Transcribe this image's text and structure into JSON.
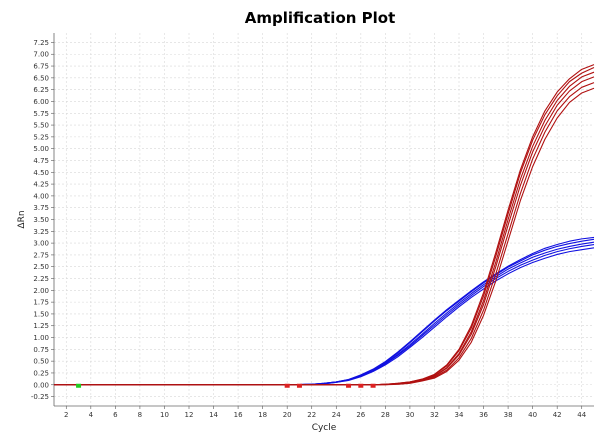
{
  "chart_data": {
    "type": "line",
    "title": "Amplification Plot",
    "xlabel": "Cycle",
    "ylabel": "ΔRn",
    "xlim": [
      1,
      45
    ],
    "ylim": [
      -0.45,
      7.45
    ],
    "x_ticks": [
      "2",
      "4",
      "6",
      "8",
      "10",
      "12",
      "14",
      "16",
      "18",
      "20",
      "22",
      "24",
      "26",
      "28",
      "30",
      "32",
      "34",
      "36",
      "38",
      "40",
      "42",
      "44"
    ],
    "y_ticks": [
      "-0.25",
      "0.00",
      "0.25",
      "0.50",
      "0.75",
      "1.00",
      "1.25",
      "1.50",
      "1.75",
      "2.00",
      "2.25",
      "2.50",
      "2.75",
      "3.00",
      "3.25",
      "3.50",
      "3.75",
      "4.00",
      "4.25",
      "4.50",
      "4.75",
      "5.00",
      "5.25",
      "5.50",
      "5.75",
      "6.00",
      "6.25",
      "6.50",
      "6.75",
      "7.00",
      "7.25"
    ],
    "grid": true,
    "series_groups": [
      {
        "color": "#1010e0",
        "curves": [
          {
            "x": [
              1,
              3,
              6,
              10,
              14,
              18,
              20,
              22,
              23,
              24,
              25,
              26,
              27,
              28,
              29,
              30,
              31,
              32,
              33,
              34,
              35,
              36,
              37,
              38,
              39,
              40,
              41,
              42,
              43,
              44,
              45
            ],
            "y": [
              0,
              0,
              0,
              0,
              0,
              0,
              0,
              0.01,
              0.03,
              0.06,
              0.11,
              0.2,
              0.32,
              0.48,
              0.67,
              0.89,
              1.12,
              1.35,
              1.57,
              1.77,
              1.97,
              2.16,
              2.33,
              2.49,
              2.62,
              2.75,
              2.85,
              2.93,
              2.99,
              3.04,
              3.08
            ]
          },
          {
            "x": [
              1,
              3,
              6,
              10,
              14,
              18,
              20,
              22,
              23,
              24,
              25,
              26,
              27,
              28,
              29,
              30,
              31,
              32,
              33,
              34,
              35,
              36,
              37,
              38,
              39,
              40,
              41,
              42,
              43,
              44,
              45
            ],
            "y": [
              0,
              0,
              0,
              0,
              0,
              0,
              0,
              0.01,
              0.03,
              0.06,
              0.1,
              0.19,
              0.3,
              0.46,
              0.64,
              0.85,
              1.07,
              1.3,
              1.52,
              1.73,
              1.93,
              2.12,
              2.29,
              2.45,
              2.58,
              2.7,
              2.79,
              2.87,
              2.93,
              2.98,
              3.02
            ]
          },
          {
            "x": [
              1,
              3,
              6,
              10,
              14,
              18,
              20,
              22,
              23,
              24,
              25,
              26,
              27,
              28,
              29,
              30,
              31,
              32,
              33,
              34,
              35,
              36,
              37,
              38,
              39,
              40,
              41,
              42,
              43,
              44,
              45
            ],
            "y": [
              0,
              0,
              0,
              0,
              0,
              0,
              0,
              0.01,
              0.02,
              0.05,
              0.1,
              0.18,
              0.29,
              0.44,
              0.62,
              0.82,
              1.04,
              1.26,
              1.48,
              1.69,
              1.89,
              2.08,
              2.25,
              2.4,
              2.53,
              2.64,
              2.74,
              2.82,
              2.88,
              2.93,
              2.97
            ]
          },
          {
            "x": [
              1,
              3,
              6,
              10,
              14,
              18,
              20,
              22,
              23,
              24,
              25,
              26,
              27,
              28,
              29,
              30,
              31,
              32,
              33,
              34,
              35,
              36,
              37,
              38,
              39,
              40,
              41,
              42,
              43,
              44,
              45
            ],
            "y": [
              0,
              0,
              0,
              0,
              0,
              0,
              0,
              0.01,
              0.02,
              0.05,
              0.09,
              0.17,
              0.28,
              0.42,
              0.59,
              0.79,
              1.0,
              1.22,
              1.44,
              1.65,
              1.85,
              2.03,
              2.2,
              2.35,
              2.48,
              2.59,
              2.68,
              2.76,
              2.82,
              2.86,
              2.9
            ]
          },
          {
            "x": [
              1,
              3,
              6,
              10,
              14,
              18,
              20,
              22,
              23,
              24,
              25,
              26,
              27,
              28,
              29,
              30,
              31,
              32,
              33,
              34,
              35,
              36,
              37,
              38,
              39,
              40,
              41,
              42,
              43,
              44,
              45
            ],
            "y": [
              0,
              0,
              0,
              0,
              0,
              0,
              0,
              0.01,
              0.03,
              0.06,
              0.11,
              0.21,
              0.33,
              0.49,
              0.69,
              0.91,
              1.14,
              1.37,
              1.59,
              1.79,
              1.99,
              2.18,
              2.35,
              2.51,
              2.65,
              2.78,
              2.89,
              2.97,
              3.04,
              3.09,
              3.12
            ]
          }
        ]
      },
      {
        "color": "#b01010",
        "curves": [
          {
            "x": [
              1,
              3,
              6,
              10,
              14,
              18,
              20,
              22,
              24,
              25,
              26,
              27,
              28,
              29,
              30,
              31,
              32,
              33,
              34,
              35,
              36,
              37,
              38,
              39,
              40,
              41,
              42,
              43,
              44,
              45
            ],
            "y": [
              0,
              0,
              0,
              0,
              0,
              0,
              0,
              0,
              0,
              0,
              0,
              0,
              0.01,
              0.03,
              0.06,
              0.12,
              0.22,
              0.42,
              0.75,
              1.25,
              1.95,
              2.8,
              3.7,
              4.55,
              5.25,
              5.8,
              6.2,
              6.48,
              6.68,
              6.78
            ]
          },
          {
            "x": [
              1,
              3,
              6,
              10,
              14,
              18,
              20,
              22,
              24,
              25,
              26,
              27,
              28,
              29,
              30,
              31,
              32,
              33,
              34,
              35,
              36,
              37,
              38,
              39,
              40,
              41,
              42,
              43,
              44,
              45
            ],
            "y": [
              0,
              0,
              0,
              0,
              0,
              0,
              0,
              0,
              0,
              0,
              0,
              0,
              0.01,
              0.03,
              0.06,
              0.11,
              0.21,
              0.4,
              0.72,
              1.2,
              1.88,
              2.72,
              3.62,
              4.48,
              5.18,
              5.72,
              6.12,
              6.42,
              6.6,
              6.72
            ]
          },
          {
            "x": [
              1,
              3,
              6,
              10,
              14,
              18,
              20,
              22,
              24,
              25,
              26,
              27,
              28,
              29,
              30,
              31,
              32,
              33,
              34,
              35,
              36,
              37,
              38,
              39,
              40,
              41,
              42,
              43,
              44,
              45
            ],
            "y": [
              0,
              0,
              0,
              0,
              0,
              0,
              0,
              0,
              0,
              0,
              0,
              0,
              0.01,
              0.02,
              0.05,
              0.1,
              0.19,
              0.36,
              0.66,
              1.12,
              1.78,
              2.6,
              3.5,
              4.35,
              5.05,
              5.6,
              6.02,
              6.32,
              6.52,
              6.62
            ]
          },
          {
            "x": [
              1,
              3,
              6,
              10,
              14,
              18,
              20,
              22,
              24,
              25,
              26,
              27,
              28,
              29,
              30,
              31,
              32,
              33,
              34,
              35,
              36,
              37,
              38,
              39,
              40,
              41,
              42,
              43,
              44,
              45
            ],
            "y": [
              0,
              0,
              0,
              0,
              0,
              0,
              0,
              0,
              0,
              0,
              0,
              0,
              0.01,
              0.02,
              0.05,
              0.1,
              0.18,
              0.35,
              0.63,
              1.07,
              1.7,
              2.5,
              3.38,
              4.22,
              4.93,
              5.48,
              5.92,
              6.22,
              6.42,
              6.52
            ]
          },
          {
            "x": [
              1,
              3,
              6,
              10,
              14,
              18,
              20,
              22,
              24,
              25,
              26,
              27,
              28,
              29,
              30,
              31,
              32,
              33,
              34,
              35,
              36,
              37,
              38,
              39,
              40,
              41,
              42,
              43,
              44,
              45
            ],
            "y": [
              0,
              0,
              0,
              0,
              0,
              0,
              0,
              0,
              0,
              0,
              0,
              0,
              0.0,
              0.02,
              0.04,
              0.09,
              0.16,
              0.31,
              0.57,
              0.98,
              1.58,
              2.35,
              3.2,
              4.05,
              4.78,
              5.35,
              5.8,
              6.1,
              6.3,
              6.4
            ]
          },
          {
            "x": [
              1,
              3,
              6,
              10,
              14,
              18,
              20,
              22,
              24,
              25,
              26,
              27,
              28,
              29,
              30,
              31,
              32,
              33,
              34,
              35,
              36,
              37,
              38,
              39,
              40,
              41,
              42,
              43,
              44,
              45
            ],
            "y": [
              0,
              0,
              0,
              0,
              0,
              0,
              0,
              0,
              0,
              0,
              0,
              0,
              0.0,
              0.01,
              0.03,
              0.08,
              0.14,
              0.28,
              0.52,
              0.9,
              1.47,
              2.2,
              3.05,
              3.9,
              4.62,
              5.2,
              5.65,
              5.98,
              6.18,
              6.28
            ]
          }
        ]
      }
    ],
    "baseline_markers": [
      {
        "x": 3,
        "color": "#22cc22"
      },
      {
        "x": 20,
        "color": "#dd2222"
      },
      {
        "x": 21,
        "color": "#dd2222"
      },
      {
        "x": 25,
        "color": "#dd2222"
      },
      {
        "x": 26,
        "color": "#dd2222"
      },
      {
        "x": 27,
        "color": "#dd2222"
      }
    ]
  }
}
